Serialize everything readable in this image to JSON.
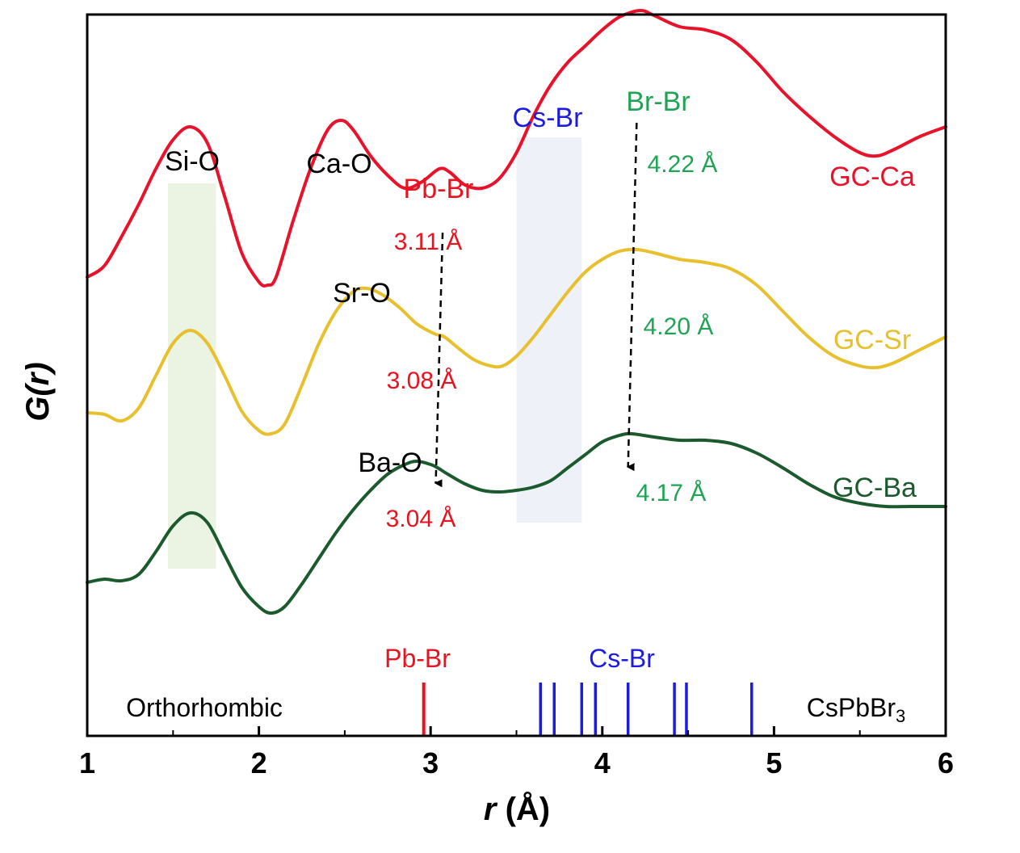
{
  "chart_data": {
    "type": "line",
    "xlabel": {
      "italic": "r",
      "rest": " (Å)"
    },
    "ylabel": {
      "italic": "G(r)"
    },
    "xlim": [
      1,
      6
    ],
    "xticks": [
      1,
      2,
      3,
      4,
      5,
      6
    ],
    "y_ticks_shown": false,
    "series": [
      {
        "name": "GC-Ca",
        "color": "#e8132b",
        "points": [
          [
            1.0,
            0.05
          ],
          [
            1.1,
            0.12
          ],
          [
            1.2,
            0.3
          ],
          [
            1.3,
            0.5
          ],
          [
            1.4,
            0.72
          ],
          [
            1.5,
            0.9
          ],
          [
            1.6,
            0.98
          ],
          [
            1.7,
            0.88
          ],
          [
            1.8,
            0.55
          ],
          [
            1.9,
            0.2
          ],
          [
            2.0,
            0.02
          ],
          [
            2.05,
            0.0
          ],
          [
            2.1,
            0.05
          ],
          [
            2.2,
            0.4
          ],
          [
            2.3,
            0.72
          ],
          [
            2.4,
            0.96
          ],
          [
            2.48,
            1.02
          ],
          [
            2.55,
            0.96
          ],
          [
            2.65,
            0.8
          ],
          [
            2.75,
            0.68
          ],
          [
            2.85,
            0.6
          ],
          [
            2.95,
            0.64
          ],
          [
            3.05,
            0.72
          ],
          [
            3.11,
            0.7
          ],
          [
            3.2,
            0.62
          ],
          [
            3.3,
            0.6
          ],
          [
            3.4,
            0.66
          ],
          [
            3.5,
            0.82
          ],
          [
            3.6,
            1.05
          ],
          [
            3.7,
            1.24
          ],
          [
            3.8,
            1.38
          ],
          [
            3.9,
            1.48
          ],
          [
            4.0,
            1.58
          ],
          [
            4.1,
            1.66
          ],
          [
            4.22,
            1.7
          ],
          [
            4.3,
            1.67
          ],
          [
            4.45,
            1.6
          ],
          [
            4.6,
            1.58
          ],
          [
            4.75,
            1.52
          ],
          [
            4.9,
            1.38
          ],
          [
            5.05,
            1.2
          ],
          [
            5.2,
            1.05
          ],
          [
            5.35,
            0.92
          ],
          [
            5.5,
            0.82
          ],
          [
            5.6,
            0.8
          ],
          [
            5.7,
            0.84
          ],
          [
            5.85,
            0.92
          ],
          [
            6.0,
            0.98
          ]
        ]
      },
      {
        "name": "GC-Sr",
        "color": "#e8c02e",
        "points": [
          [
            1.0,
            0.05
          ],
          [
            1.1,
            0.04
          ],
          [
            1.2,
            0.0
          ],
          [
            1.3,
            0.08
          ],
          [
            1.4,
            0.28
          ],
          [
            1.5,
            0.48
          ],
          [
            1.6,
            0.56
          ],
          [
            1.7,
            0.48
          ],
          [
            1.8,
            0.28
          ],
          [
            1.9,
            0.06
          ],
          [
            2.0,
            -0.06
          ],
          [
            2.07,
            -0.08
          ],
          [
            2.15,
            -0.02
          ],
          [
            2.25,
            0.22
          ],
          [
            2.35,
            0.48
          ],
          [
            2.45,
            0.68
          ],
          [
            2.55,
            0.8
          ],
          [
            2.63,
            0.82
          ],
          [
            2.72,
            0.78
          ],
          [
            2.82,
            0.7
          ],
          [
            2.92,
            0.6
          ],
          [
            3.02,
            0.54
          ],
          [
            3.08,
            0.52
          ],
          [
            3.15,
            0.46
          ],
          [
            3.25,
            0.38
          ],
          [
            3.35,
            0.34
          ],
          [
            3.42,
            0.34
          ],
          [
            3.5,
            0.4
          ],
          [
            3.6,
            0.52
          ],
          [
            3.7,
            0.66
          ],
          [
            3.8,
            0.8
          ],
          [
            3.9,
            0.92
          ],
          [
            4.0,
            1.0
          ],
          [
            4.1,
            1.05
          ],
          [
            4.2,
            1.06
          ],
          [
            4.3,
            1.04
          ],
          [
            4.45,
            1.0
          ],
          [
            4.6,
            0.98
          ],
          [
            4.75,
            0.94
          ],
          [
            4.9,
            0.84
          ],
          [
            5.05,
            0.68
          ],
          [
            5.2,
            0.52
          ],
          [
            5.35,
            0.4
          ],
          [
            5.5,
            0.34
          ],
          [
            5.6,
            0.33
          ],
          [
            5.7,
            0.36
          ],
          [
            5.85,
            0.44
          ],
          [
            6.0,
            0.52
          ]
        ]
      },
      {
        "name": "GC-Ba",
        "color": "#1b5a2c",
        "points": [
          [
            1.0,
            0.05
          ],
          [
            1.1,
            0.07
          ],
          [
            1.2,
            0.06
          ],
          [
            1.3,
            0.1
          ],
          [
            1.4,
            0.24
          ],
          [
            1.5,
            0.4
          ],
          [
            1.6,
            0.48
          ],
          [
            1.7,
            0.42
          ],
          [
            1.8,
            0.22
          ],
          [
            1.9,
            0.02
          ],
          [
            2.0,
            -0.1
          ],
          [
            2.07,
            -0.14
          ],
          [
            2.15,
            -0.1
          ],
          [
            2.25,
            0.04
          ],
          [
            2.35,
            0.2
          ],
          [
            2.45,
            0.36
          ],
          [
            2.55,
            0.5
          ],
          [
            2.65,
            0.62
          ],
          [
            2.75,
            0.72
          ],
          [
            2.85,
            0.78
          ],
          [
            2.92,
            0.8
          ],
          [
            3.0,
            0.78
          ],
          [
            3.04,
            0.76
          ],
          [
            3.1,
            0.72
          ],
          [
            3.2,
            0.66
          ],
          [
            3.3,
            0.62
          ],
          [
            3.4,
            0.61
          ],
          [
            3.5,
            0.62
          ],
          [
            3.6,
            0.64
          ],
          [
            3.7,
            0.68
          ],
          [
            3.8,
            0.76
          ],
          [
            3.9,
            0.84
          ],
          [
            4.0,
            0.92
          ],
          [
            4.1,
            0.96
          ],
          [
            4.17,
            0.97
          ],
          [
            4.3,
            0.95
          ],
          [
            4.45,
            0.93
          ],
          [
            4.6,
            0.93
          ],
          [
            4.75,
            0.91
          ],
          [
            4.9,
            0.85
          ],
          [
            5.05,
            0.76
          ],
          [
            5.2,
            0.66
          ],
          [
            5.35,
            0.58
          ],
          [
            5.5,
            0.54
          ],
          [
            5.65,
            0.52
          ],
          [
            5.8,
            0.52
          ],
          [
            6.0,
            0.52
          ]
        ]
      }
    ],
    "shaded_bands": [
      {
        "name": "si-o-band",
        "x": [
          1.47,
          1.75
        ],
        "color": "#ebf4e2"
      },
      {
        "name": "cs-br-band",
        "x": [
          3.5,
          3.88
        ],
        "color": "#eef1f8"
      }
    ],
    "arrows": [
      {
        "name": "pb-br-shift-arrow",
        "from_x": 3.07,
        "to_x": 3.03
      },
      {
        "name": "br-br-shift-arrow",
        "from_x": 4.2,
        "to_x": 4.15
      }
    ],
    "annotations": {
      "si_o": {
        "text": "Si-O",
        "color": "#000000"
      },
      "ca_o": {
        "text": "Ca-O",
        "color": "#000000"
      },
      "sr_o": {
        "text": "Sr-O",
        "color": "#000000"
      },
      "ba_o": {
        "text": "Ba-O",
        "color": "#000000"
      },
      "pb_br": {
        "text": "Pb-Br",
        "color": "#e8131f"
      },
      "cs_br": {
        "text": "Cs-Br",
        "color": "#1c1ce0"
      },
      "br_br": {
        "text": "Br-Br",
        "color": "#20a454"
      },
      "ca_pb_dist": {
        "text": "3.11 Å",
        "color": "#e8131f"
      },
      "sr_pb_dist": {
        "text": "3.08 Å",
        "color": "#e8131f"
      },
      "ba_pb_dist": {
        "text": "3.04 Å",
        "color": "#e8131f"
      },
      "ca_br_dist": {
        "text": "4.22 Å",
        "color": "#20a454"
      },
      "sr_br_dist": {
        "text": "4.20 Å",
        "color": "#20a454"
      },
      "ba_br_dist": {
        "text": "4.17 Å",
        "color": "#20a454"
      },
      "label_ca": {
        "text": "GC-Ca",
        "color": "#e8132b"
      },
      "label_sr": {
        "text": "GC-Sr",
        "color": "#e8c02e"
      },
      "label_ba": {
        "text": "GC-Ba",
        "color": "#1b5a2c"
      }
    },
    "reference": {
      "phase": "Orthorhombic",
      "compound": {
        "main": "CsPbBr",
        "sub": "3"
      },
      "pb_br_label": "Pb-Br",
      "cs_br_label": "Cs-Br",
      "pb_br_color": "#e8131f",
      "cs_br_color": "#1c1ce0",
      "pb_br_sticks": [
        2.96
      ],
      "cs_br_sticks": [
        3.64,
        3.72,
        3.88,
        3.96,
        4.15,
        4.42,
        4.49,
        4.87
      ]
    }
  }
}
